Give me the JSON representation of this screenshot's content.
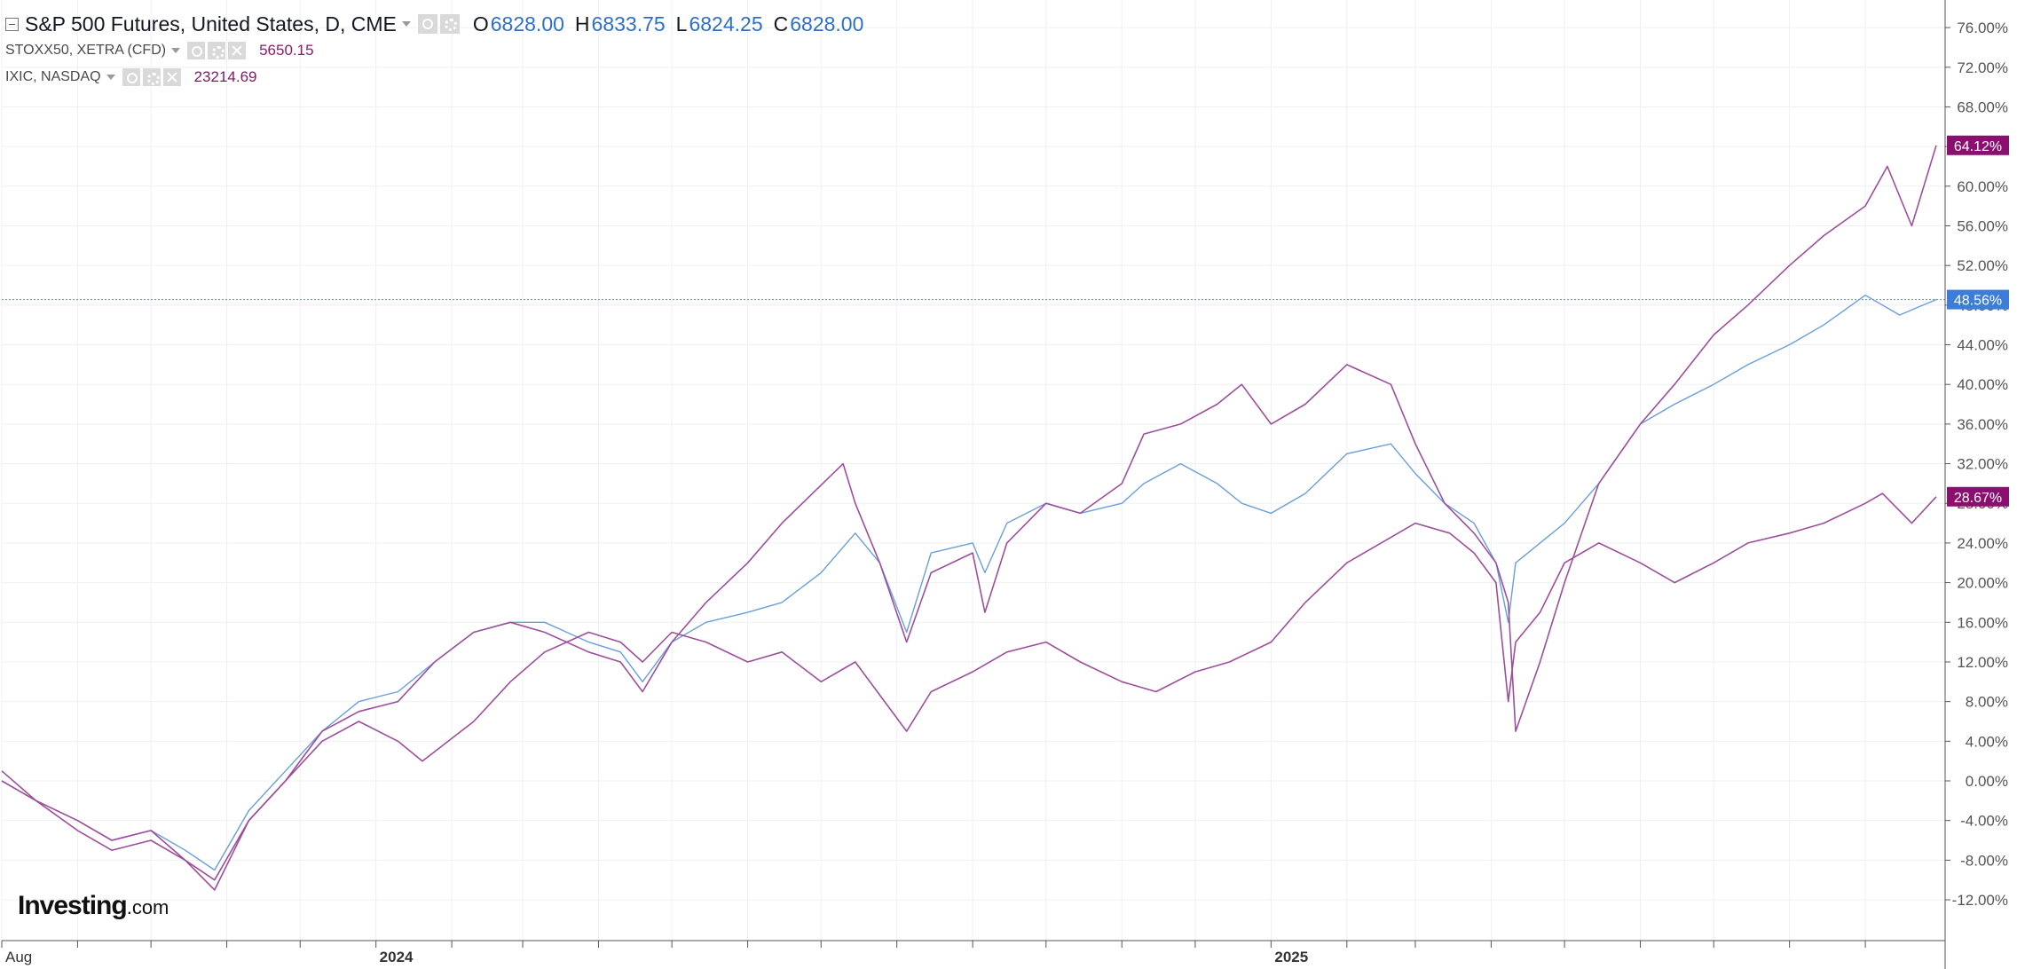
{
  "legend": {
    "main": {
      "symbol": "S&P 500 Futures, United States, D, CME",
      "open_label": "O",
      "open": "6828.00",
      "high_label": "H",
      "high": "6833.75",
      "low_label": "L",
      "low": "6824.25",
      "close_label": "C",
      "close": "6828.00"
    },
    "compare1": {
      "symbol": "STOXX50, XETRA (CFD)",
      "value": "5650.15",
      "color": "#8e1a6c"
    },
    "compare2": {
      "symbol": "IXIC, NASDAQ",
      "value": "23214.69",
      "color": "#7b1a63"
    },
    "icons": [
      "eye-icon",
      "gear-icon",
      "close-icon"
    ]
  },
  "logo": {
    "brand": "Investing",
    "suffix": ".com"
  },
  "colors": {
    "main_line": "#6a9fd8",
    "compare_line": "#9c4f9a",
    "badge_purple": "#8a0f6e",
    "badge_blue": "#3b7dd8",
    "grid": "#eef0f3",
    "axis_text": "#555555"
  },
  "chart_data": {
    "type": "line",
    "title": "S&P 500 Futures, United States, D, CME",
    "xlabel": "",
    "ylabel": "",
    "y_unit": "%",
    "xlim": [
      "2023-08-01",
      "2025-09-30"
    ],
    "ylim": [
      -14,
      78
    ],
    "x_ticks": [
      {
        "date": "2023-08-01",
        "label": "Aug"
      },
      {
        "date": "2023-09-01",
        "label": ""
      },
      {
        "date": "2023-10-01",
        "label": ""
      },
      {
        "date": "2023-11-01",
        "label": ""
      },
      {
        "date": "2023-12-01",
        "label": ""
      },
      {
        "date": "2024-01-01",
        "label": "2024"
      },
      {
        "date": "2024-02-01",
        "label": ""
      },
      {
        "date": "2024-03-01",
        "label": ""
      },
      {
        "date": "2024-04-01",
        "label": ""
      },
      {
        "date": "2024-05-01",
        "label": ""
      },
      {
        "date": "2024-06-01",
        "label": ""
      },
      {
        "date": "2024-07-01",
        "label": ""
      },
      {
        "date": "2024-08-01",
        "label": ""
      },
      {
        "date": "2024-09-01",
        "label": ""
      },
      {
        "date": "2024-10-01",
        "label": ""
      },
      {
        "date": "2024-11-01",
        "label": ""
      },
      {
        "date": "2024-12-01",
        "label": ""
      },
      {
        "date": "2025-01-01",
        "label": "2025"
      },
      {
        "date": "2025-02-01",
        "label": ""
      },
      {
        "date": "2025-03-01",
        "label": ""
      },
      {
        "date": "2025-04-01",
        "label": ""
      },
      {
        "date": "2025-05-01",
        "label": ""
      },
      {
        "date": "2025-06-01",
        "label": ""
      },
      {
        "date": "2025-07-01",
        "label": ""
      },
      {
        "date": "2025-08-01",
        "label": ""
      },
      {
        "date": "2025-09-01",
        "label": ""
      }
    ],
    "y_ticks": [
      76,
      72,
      68,
      64,
      60,
      56,
      52,
      48,
      44,
      40,
      36,
      32,
      28,
      24,
      20,
      16,
      12,
      8,
      4,
      0,
      -4,
      -8,
      -12
    ],
    "y_tick_labels": [
      "76.00%",
      "72.00%",
      "68.00%",
      "64.00%",
      "60.00%",
      "56.00%",
      "52.00%",
      "48.00%",
      "44.00%",
      "40.00%",
      "36.00%",
      "32.00%",
      "28.00%",
      "24.00%",
      "20.00%",
      "16.00%",
      "12.00%",
      "8.00%",
      "4.00%",
      "0.00%",
      "-4.00%",
      "-8.00%",
      "-12.00%"
    ],
    "grid": true,
    "crosshair_y": 48.56,
    "series": [
      {
        "name": "S&P 500 Futures",
        "color": "#6a9fd8",
        "width": 1.4,
        "badge": "48.56%",
        "badge_color": "#3b7dd8",
        "x": [
          "2023-08-01",
          "2023-08-15",
          "2023-09-01",
          "2023-09-15",
          "2023-10-01",
          "2023-10-15",
          "2023-10-27",
          "2023-11-10",
          "2023-11-25",
          "2023-12-10",
          "2023-12-25",
          "2024-01-10",
          "2024-01-25",
          "2024-02-10",
          "2024-02-25",
          "2024-03-10",
          "2024-03-28",
          "2024-04-10",
          "2024-04-19",
          "2024-05-01",
          "2024-05-15",
          "2024-06-01",
          "2024-06-15",
          "2024-07-01",
          "2024-07-15",
          "2024-07-25",
          "2024-08-05",
          "2024-08-15",
          "2024-09-01",
          "2024-09-06",
          "2024-09-15",
          "2024-10-01",
          "2024-10-15",
          "2024-11-01",
          "2024-11-10",
          "2024-11-25",
          "2024-12-10",
          "2024-12-20",
          "2025-01-01",
          "2025-01-15",
          "2025-02-01",
          "2025-02-19",
          "2025-03-01",
          "2025-03-13",
          "2025-03-25",
          "2025-04-03",
          "2025-04-08",
          "2025-04-11",
          "2025-04-21",
          "2025-05-01",
          "2025-05-15",
          "2025-06-01",
          "2025-06-15",
          "2025-07-01",
          "2025-07-15",
          "2025-08-01",
          "2025-08-15",
          "2025-09-01",
          "2025-09-15",
          "2025-09-30"
        ],
        "y": [
          0,
          -2,
          -4,
          -6,
          -5,
          -7,
          -9,
          -3,
          1,
          5,
          8,
          9,
          12,
          15,
          16,
          16,
          14,
          13,
          10,
          14,
          16,
          17,
          18,
          21,
          25,
          22,
          15,
          23,
          24,
          21,
          26,
          28,
          27,
          28,
          30,
          32,
          30,
          28,
          27,
          29,
          33,
          34,
          31,
          28,
          26,
          22,
          16,
          22,
          24,
          26,
          30,
          36,
          38,
          40,
          42,
          44,
          46,
          49,
          47,
          48.56
        ]
      },
      {
        "name": "STOXX50, XETRA (CFD)",
        "color": "#9c4f9a",
        "width": 1.6,
        "badge": "28.67%",
        "badge_color": "#8a0f6e",
        "x": [
          "2023-08-01",
          "2023-08-15",
          "2023-09-01",
          "2023-09-15",
          "2023-10-01",
          "2023-10-15",
          "2023-10-27",
          "2023-11-10",
          "2023-11-25",
          "2023-12-10",
          "2023-12-25",
          "2024-01-10",
          "2024-01-20",
          "2024-02-10",
          "2024-02-25",
          "2024-03-10",
          "2024-03-28",
          "2024-04-10",
          "2024-04-19",
          "2024-05-01",
          "2024-05-15",
          "2024-06-01",
          "2024-06-15",
          "2024-07-01",
          "2024-07-15",
          "2024-08-05",
          "2024-08-15",
          "2024-09-01",
          "2024-09-15",
          "2024-10-01",
          "2024-10-15",
          "2024-11-01",
          "2024-11-15",
          "2024-12-01",
          "2024-12-15",
          "2025-01-01",
          "2025-01-15",
          "2025-02-01",
          "2025-02-15",
          "2025-03-01",
          "2025-03-15",
          "2025-03-25",
          "2025-04-03",
          "2025-04-08",
          "2025-04-11",
          "2025-04-21",
          "2025-05-01",
          "2025-05-15",
          "2025-06-01",
          "2025-06-15",
          "2025-07-01",
          "2025-07-15",
          "2025-08-01",
          "2025-08-15",
          "2025-09-01",
          "2025-09-08",
          "2025-09-20",
          "2025-09-30"
        ],
        "y": [
          1,
          -2,
          -4,
          -6,
          -5,
          -8,
          -10,
          -4,
          0,
          4,
          6,
          4,
          2,
          6,
          10,
          13,
          15,
          14,
          12,
          15,
          14,
          12,
          13,
          10,
          12,
          5,
          9,
          11,
          13,
          14,
          12,
          10,
          9,
          11,
          12,
          14,
          18,
          22,
          24,
          26,
          25,
          23,
          20,
          8,
          14,
          17,
          22,
          24,
          22,
          20,
          22,
          24,
          25,
          26,
          28,
          29,
          26,
          28.67
        ]
      },
      {
        "name": "IXIC, NASDAQ",
        "color": "#9c4f9a",
        "width": 1.6,
        "badge": "64.12%",
        "badge_color": "#8a0f6e",
        "x": [
          "2023-08-01",
          "2023-08-15",
          "2023-09-01",
          "2023-09-15",
          "2023-10-01",
          "2023-10-15",
          "2023-10-27",
          "2023-11-10",
          "2023-11-25",
          "2023-12-10",
          "2023-12-25",
          "2024-01-10",
          "2024-01-25",
          "2024-02-10",
          "2024-02-25",
          "2024-03-10",
          "2024-03-28",
          "2024-04-10",
          "2024-04-19",
          "2024-05-01",
          "2024-05-15",
          "2024-06-01",
          "2024-06-15",
          "2024-07-10",
          "2024-07-15",
          "2024-07-25",
          "2024-08-05",
          "2024-08-15",
          "2024-09-01",
          "2024-09-06",
          "2024-09-15",
          "2024-10-01",
          "2024-10-15",
          "2024-11-01",
          "2024-11-10",
          "2024-11-25",
          "2024-12-10",
          "2024-12-20",
          "2025-01-01",
          "2025-01-15",
          "2025-02-01",
          "2025-02-19",
          "2025-03-01",
          "2025-03-13",
          "2025-03-25",
          "2025-04-03",
          "2025-04-08",
          "2025-04-11",
          "2025-04-21",
          "2025-05-01",
          "2025-05-15",
          "2025-06-01",
          "2025-06-15",
          "2025-07-01",
          "2025-07-15",
          "2025-08-01",
          "2025-08-15",
          "2025-09-01",
          "2025-09-10",
          "2025-09-20",
          "2025-09-30"
        ],
        "y": [
          0,
          -2,
          -5,
          -7,
          -6,
          -8,
          -11,
          -4,
          0,
          5,
          7,
          8,
          12,
          15,
          16,
          15,
          13,
          12,
          9,
          14,
          18,
          22,
          26,
          32,
          28,
          22,
          14,
          21,
          23,
          17,
          24,
          28,
          27,
          30,
          35,
          36,
          38,
          40,
          36,
          38,
          42,
          40,
          34,
          28,
          25,
          22,
          18,
          5,
          12,
          20,
          30,
          36,
          40,
          45,
          48,
          52,
          55,
          58,
          62,
          56,
          64.12
        ]
      }
    ]
  }
}
